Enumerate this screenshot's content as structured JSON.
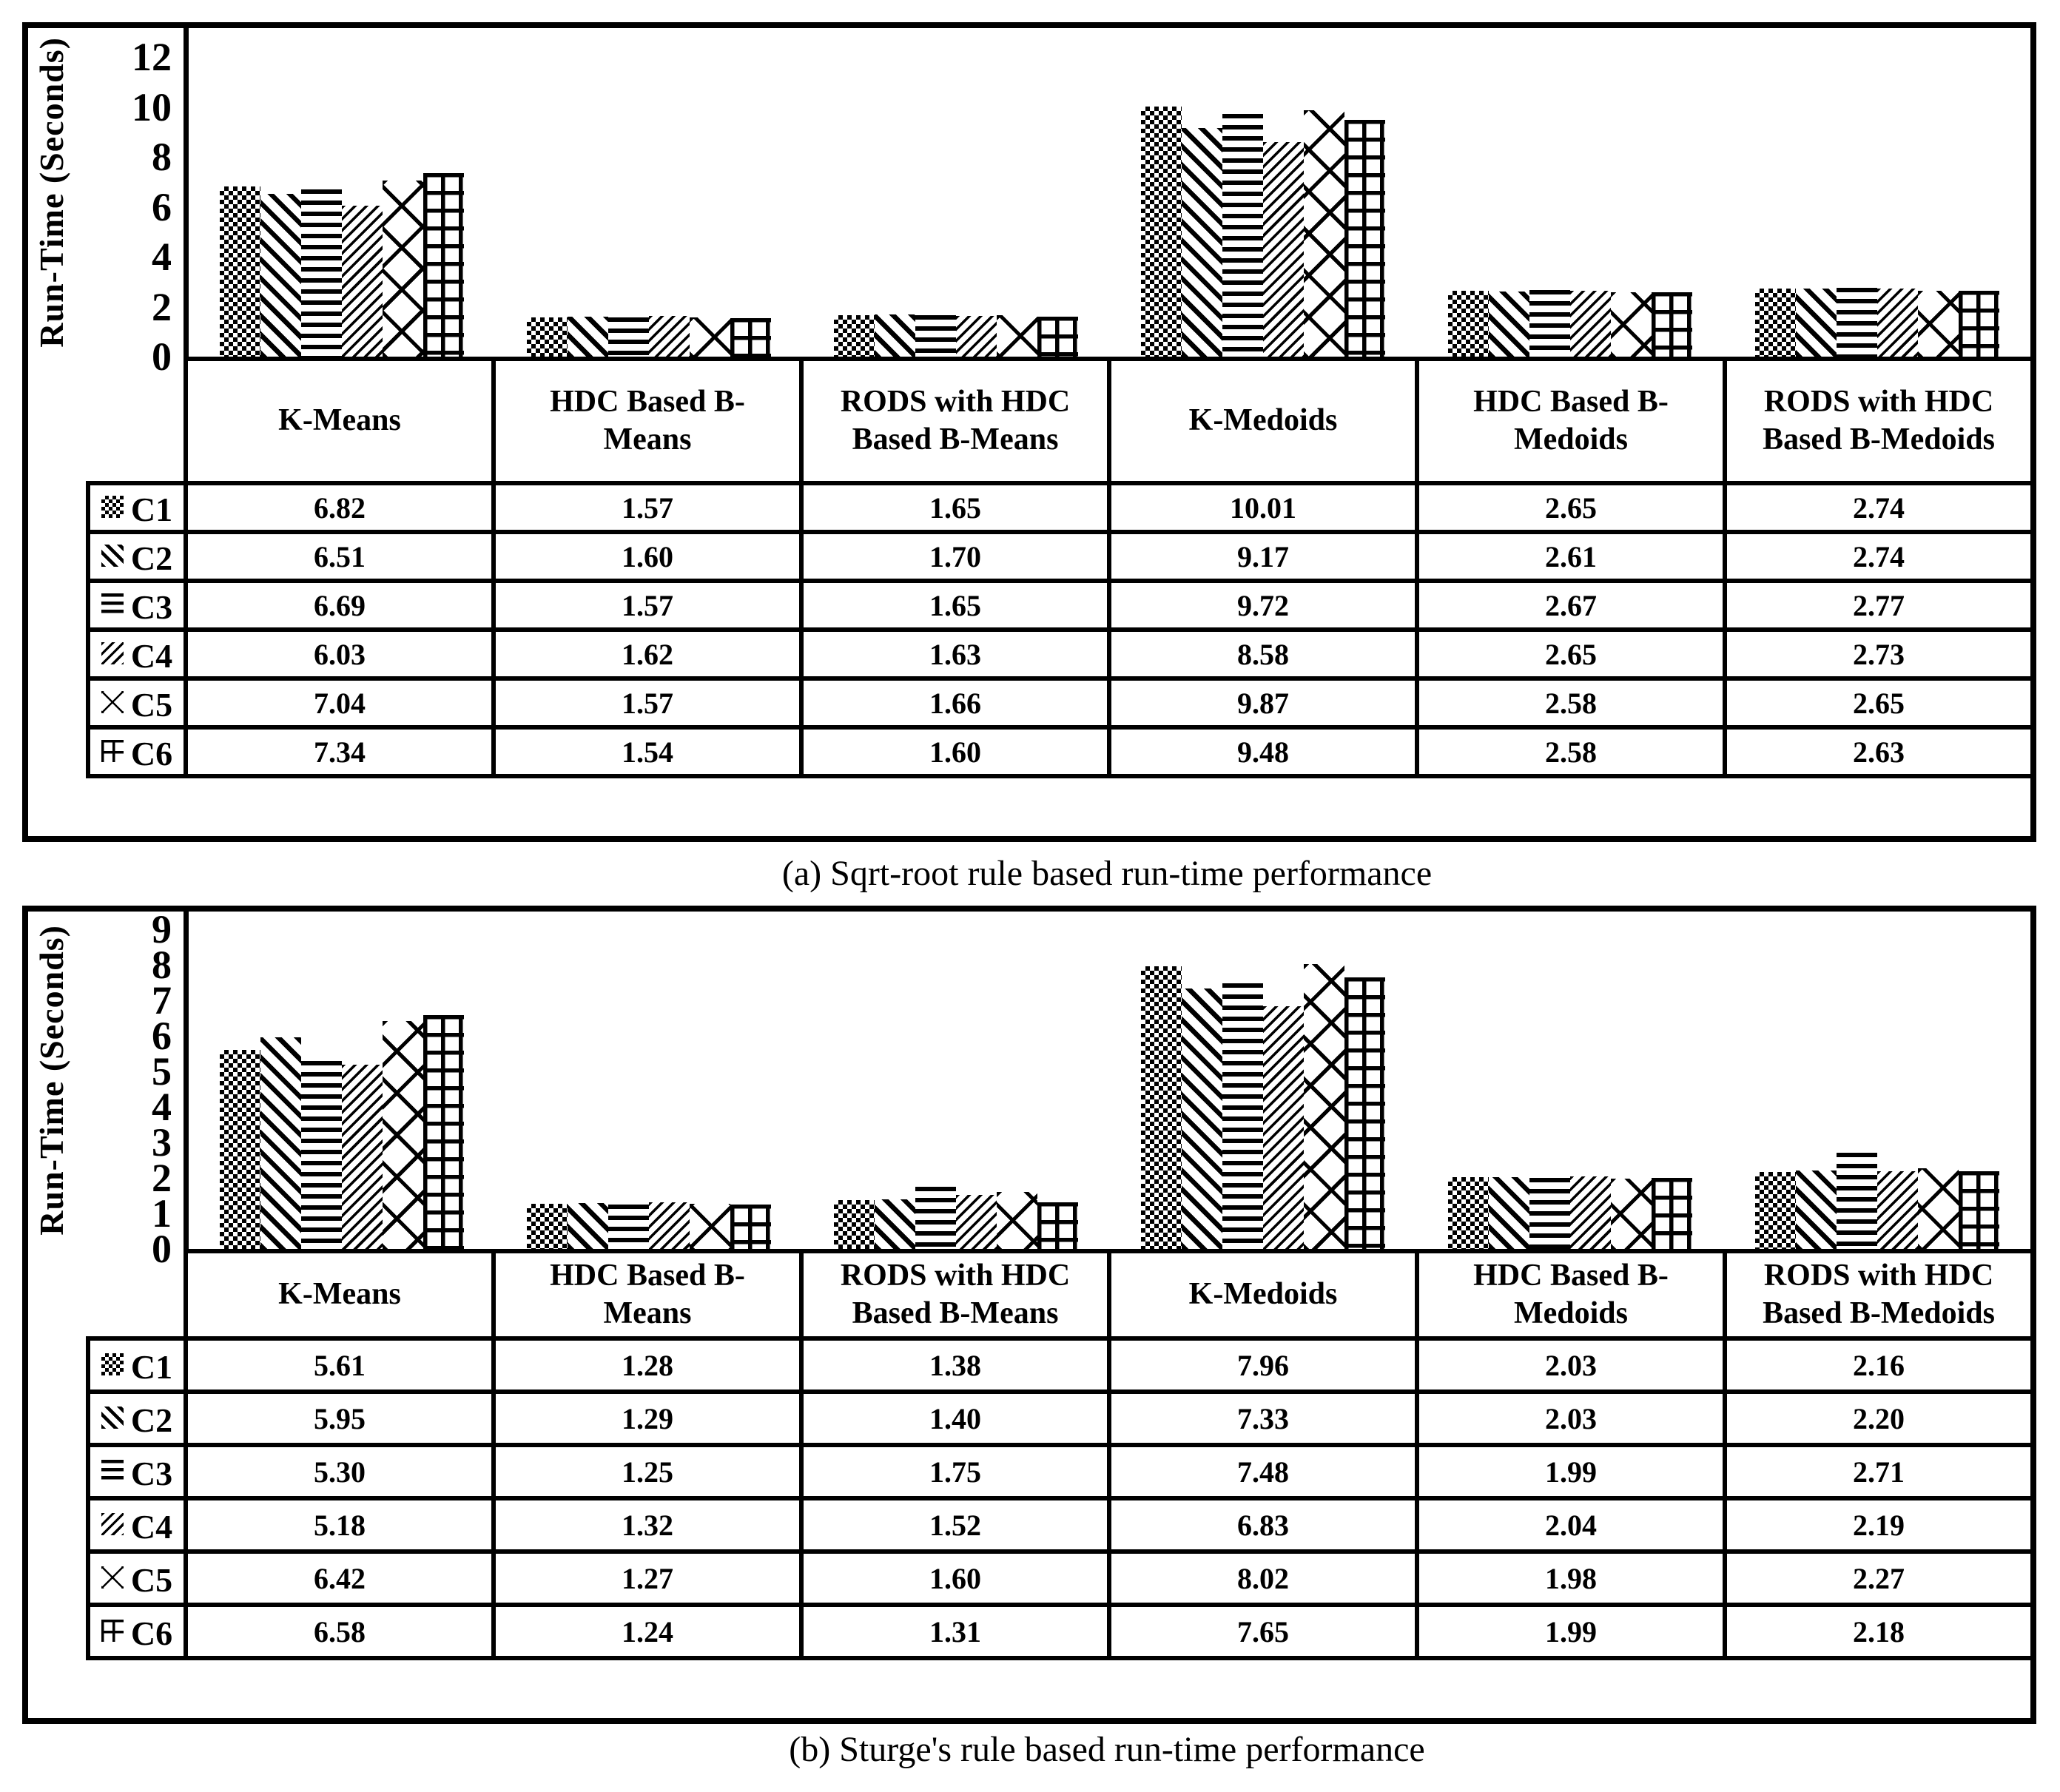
{
  "page": {
    "background": "#ffffff",
    "ink": "#000000"
  },
  "chart_data": [
    {
      "type": "bar",
      "title": "(a) Sqrt-root rule based run-time performance",
      "ylabel": "Run-Time (Seconds)",
      "xlabel": "",
      "ylim": [
        0,
        12
      ],
      "ytick_step": 2,
      "yticks": [
        12,
        10,
        8,
        6,
        4,
        2,
        0
      ],
      "grid": false,
      "legend_position": "table-left",
      "categories": [
        "K-Means",
        "HDC Based B-Means",
        "RODS with HDC Based B-Means",
        "K-Medoids",
        "HDC Based B-Medoids",
        "RODS with HDC Based B-Medoids"
      ],
      "series": [
        {
          "name": "C1",
          "pattern": "checkerboard",
          "values": [
            6.82,
            1.57,
            1.65,
            10.01,
            2.65,
            2.74
          ]
        },
        {
          "name": "C2",
          "pattern": "diagonal-down",
          "values": [
            6.51,
            1.6,
            1.7,
            9.17,
            2.61,
            2.74
          ]
        },
        {
          "name": "C3",
          "pattern": "horizontal-lines",
          "values": [
            6.69,
            1.57,
            1.65,
            9.72,
            2.67,
            2.77
          ]
        },
        {
          "name": "C4",
          "pattern": "diagonal-up",
          "values": [
            6.03,
            1.62,
            1.63,
            8.58,
            2.65,
            2.73
          ]
        },
        {
          "name": "C5",
          "pattern": "diamond-lattice",
          "values": [
            7.04,
            1.57,
            1.66,
            9.87,
            2.58,
            2.65
          ]
        },
        {
          "name": "C6",
          "pattern": "grid",
          "values": [
            7.34,
            1.54,
            1.6,
            9.48,
            2.58,
            2.63
          ]
        }
      ]
    },
    {
      "type": "bar",
      "title": "(b) Sturge's rule based run-time performance",
      "ylabel": "Run-Time (Seconds)",
      "xlabel": "",
      "ylim": [
        0,
        9
      ],
      "ytick_step": 1,
      "yticks": [
        9,
        8,
        7,
        6,
        5,
        4,
        3,
        2,
        1,
        0
      ],
      "grid": false,
      "legend_position": "table-left",
      "categories": [
        "K-Means",
        "HDC Based B-Means",
        "RODS with HDC Based B-Means",
        "K-Medoids",
        "HDC Based B-Medoids",
        "RODS with HDC Based B-Medoids"
      ],
      "series": [
        {
          "name": "C1",
          "pattern": "checkerboard",
          "values": [
            5.61,
            1.28,
            1.38,
            7.96,
            2.03,
            2.16
          ]
        },
        {
          "name": "C2",
          "pattern": "diagonal-down",
          "values": [
            5.95,
            1.29,
            1.4,
            7.33,
            2.03,
            2.2
          ]
        },
        {
          "name": "C3",
          "pattern": "horizontal-lines",
          "values": [
            5.3,
            1.25,
            1.75,
            7.48,
            1.99,
            2.71
          ]
        },
        {
          "name": "C4",
          "pattern": "diagonal-up",
          "values": [
            5.18,
            1.32,
            1.52,
            6.83,
            2.04,
            2.19
          ]
        },
        {
          "name": "C5",
          "pattern": "diamond-lattice",
          "values": [
            6.42,
            1.27,
            1.6,
            8.02,
            1.98,
            2.27
          ]
        },
        {
          "name": "C6",
          "pattern": "grid",
          "values": [
            6.58,
            1.24,
            1.31,
            7.65,
            1.99,
            2.18
          ]
        }
      ]
    }
  ]
}
